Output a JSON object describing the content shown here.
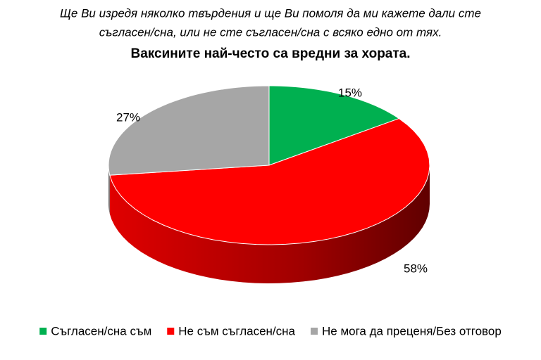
{
  "chart_data": {
    "type": "pie",
    "subtitle": [
      "Ще Ви изредя няколко твърдения и ще Ви помоля да ми кажете дали сте",
      "съгласен/сна, или не сте съгласен/сна с всяко едно от тях."
    ],
    "title": "Ваксините най-често са вредни за хората.",
    "categories": [
      "Съгласен/сна съм",
      "Не съм съгласен/сна",
      "Не мога да преценя/Без отговор"
    ],
    "values": [
      15,
      58,
      27
    ],
    "value_labels": [
      "15%",
      "58%",
      "27%"
    ],
    "colors": [
      "#00b050",
      "#ff0000",
      "#a6a6a6"
    ],
    "legend": "bottom"
  }
}
